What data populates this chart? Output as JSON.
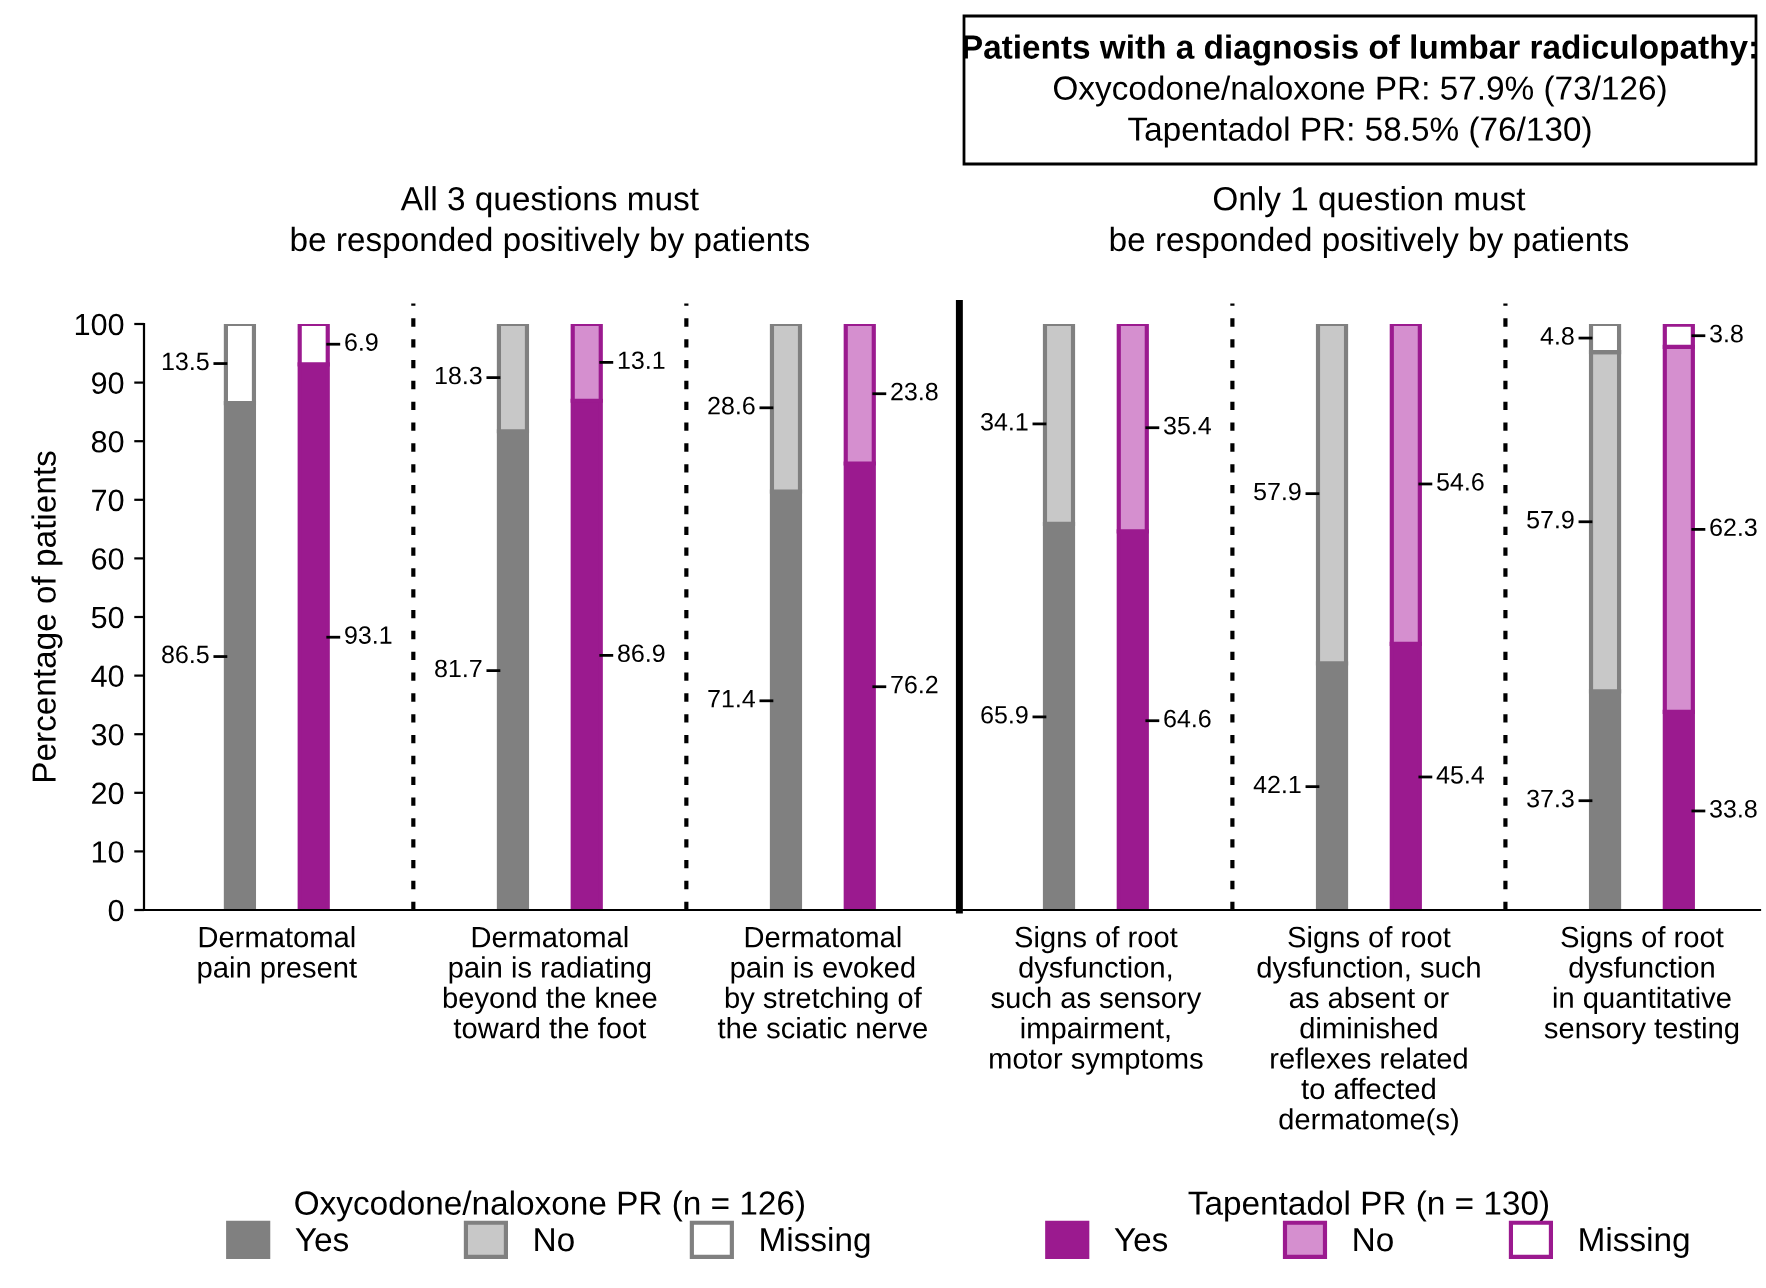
{
  "chart_data": {
    "type": "bar",
    "stacked": true,
    "categories": [
      null,
      null,
      null,
      null,
      null,
      null,
      null,
      null,
      null,
      null,
      null,
      null
    ],
    "ylabel": "Percentage of patients",
    "ylim": [
      0,
      100
    ],
    "yticks": [
      0,
      10,
      20,
      30,
      40,
      50,
      60,
      70,
      80,
      90,
      100
    ],
    "data_labels": true,
    "legend": "bottom",
    "annotations": [
      "All 3 questions must\nbe responded positively by patients",
      "Only 1 question must\nbe responded positively by patients",
      "Patients with a diagnosis of lumbar radiculopathy:",
      "Oxycodone/naloxone PR: 57.9% (73/126)",
      "Tapentadol PR: 58.5% (76/130)",
      "Oxycodone/naloxone PR (n = 126)",
      "Tapentadol PR (n = 130)",
      "Dermatomal\npain present",
      "Dermatomal\npain is radiating\nbeyond the knee\ntoward the foot",
      "Dermatomal\npain is evoked\nby stretching of\nthe sciatic nerve",
      "Signs of root\ndysfunction,\nsuch as sensory\nimpairment,\nmotor symptoms",
      "Signs of root\ndysfunction, such\nas absent or\ndiminished\nreflexes related\nto affected\ndermatome(s)",
      "Signs of root\ndysfunction\nin quantitative\nsensory testing"
    ],
    "series": [
      {
        "name": "Yes",
        "colors": [
          "#808080",
          "#9b1a8f",
          "#808080",
          "#9b1a8f",
          "#808080",
          "#9b1a8f",
          "#808080",
          "#9b1a8f",
          "#808080",
          "#9b1a8f",
          "#808080",
          "#9b1a8f"
        ],
        "values": [
          86.5,
          93.1,
          81.7,
          86.9,
          71.4,
          76.2,
          65.9,
          64.6,
          42.1,
          45.4,
          37.3,
          33.8
        ]
      },
      {
        "name": "No",
        "colors": [
          "#c8c8c8",
          "#d58fcf",
          "#c8c8c8",
          "#d58fcf",
          "#c8c8c8",
          "#d58fcf",
          "#c8c8c8",
          "#d58fcf",
          "#c8c8c8",
          "#d58fcf",
          "#c8c8c8",
          "#d58fcf"
        ],
        "values": [
          null,
          null,
          18.3,
          13.1,
          28.6,
          23.8,
          34.1,
          35.4,
          57.9,
          54.6,
          57.9,
          62.3
        ]
      },
      {
        "name": "Missing",
        "colors": [
          "#ffffff",
          "#ffffff",
          "#ffffff",
          "#ffffff",
          "#ffffff",
          "#ffffff",
          "#ffffff",
          "#ffffff",
          "#ffffff",
          "#ffffff",
          "#ffffff",
          "#ffffff"
        ],
        "values": [
          13.5,
          6.9,
          null,
          null,
          null,
          null,
          null,
          null,
          null,
          null,
          4.8,
          3.8
        ]
      }
    ]
  }
}
